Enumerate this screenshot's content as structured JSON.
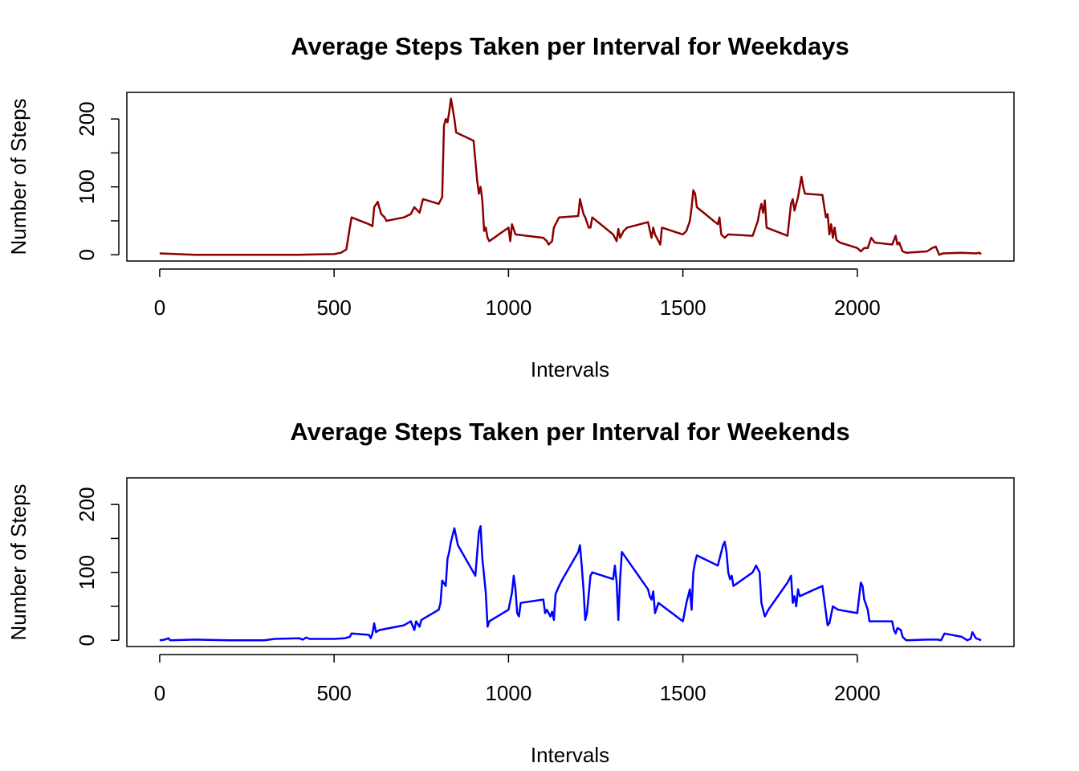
{
  "chart_data": [
    {
      "type": "line",
      "title": "Average Steps Taken per Interval for Weekdays",
      "xlabel": "Intervals",
      "ylabel": "Number of Steps",
      "xlim": [
        -94.2,
        2449.2
      ],
      "ylim": [
        -9.2,
        239.2
      ],
      "xticks": [
        0,
        500,
        1000,
        1500,
        2000
      ],
      "yticks": [
        0,
        100,
        200
      ],
      "yminor_ticks": [
        50,
        150
      ],
      "series": [
        {
          "name": "Weekdays",
          "color": "#8b0000",
          "x": [
            0,
            100,
            200,
            300,
            400,
            500,
            520,
            535,
            545,
            550,
            600,
            610,
            615,
            625,
            635,
            645,
            650,
            700,
            720,
            730,
            745,
            755,
            800,
            805,
            810,
            815,
            820,
            825,
            830,
            835,
            840,
            845,
            850,
            900,
            910,
            915,
            920,
            925,
            930,
            935,
            940,
            945,
            1000,
            1005,
            1010,
            1020,
            1100,
            1110,
            1115,
            1125,
            1130,
            1135,
            1145,
            1200,
            1205,
            1215,
            1220,
            1230,
            1235,
            1240,
            1300,
            1310,
            1315,
            1320,
            1330,
            1340,
            1400,
            1410,
            1415,
            1420,
            1435,
            1440,
            1500,
            1510,
            1520,
            1525,
            1530,
            1535,
            1540,
            1600,
            1605,
            1610,
            1620,
            1630,
            1700,
            1715,
            1720,
            1725,
            1730,
            1735,
            1740,
            1800,
            1810,
            1815,
            1820,
            1830,
            1840,
            1845,
            1850,
            1900,
            1910,
            1915,
            1920,
            1925,
            1930,
            1935,
            1940,
            1950,
            2000,
            2010,
            2020,
            2030,
            2040,
            2050,
            2100,
            2110,
            2115,
            2120,
            2130,
            2140,
            2200,
            2215,
            2225,
            2235,
            2245,
            2300,
            2340,
            2350,
            2355
          ],
          "values": [
            2,
            0,
            0,
            0,
            0,
            1,
            3,
            8,
            40,
            55,
            45,
            42,
            70,
            78,
            60,
            55,
            50,
            55,
            60,
            70,
            62,
            82,
            75,
            80,
            85,
            190,
            200,
            195,
            210,
            230,
            215,
            200,
            180,
            168,
            110,
            90,
            100,
            80,
            35,
            40,
            25,
            20,
            40,
            20,
            45,
            30,
            25,
            20,
            15,
            20,
            40,
            45,
            55,
            57,
            82,
            60,
            55,
            40,
            40,
            55,
            30,
            20,
            38,
            25,
            35,
            40,
            48,
            25,
            40,
            30,
            15,
            40,
            30,
            35,
            50,
            70,
            95,
            90,
            70,
            45,
            55,
            30,
            25,
            30,
            28,
            50,
            65,
            75,
            62,
            80,
            40,
            28,
            75,
            82,
            65,
            85,
            115,
            100,
            90,
            88,
            55,
            60,
            30,
            45,
            25,
            40,
            22,
            18,
            10,
            5,
            10,
            10,
            25,
            18,
            15,
            28,
            15,
            18,
            5,
            3,
            5,
            10,
            12,
            0,
            2,
            3,
            2,
            3,
            1
          ]
        }
      ]
    },
    {
      "type": "line",
      "title": "Average Steps Taken per Interval for Weekends",
      "xlabel": "Intervals",
      "ylabel": "Number of Steps",
      "xlim": [
        -94.2,
        2449.2
      ],
      "ylim": [
        -9.2,
        239.2
      ],
      "xticks": [
        0,
        500,
        1000,
        1500,
        2000
      ],
      "yticks": [
        0,
        100,
        200
      ],
      "yminor_ticks": [
        50,
        150
      ],
      "series": [
        {
          "name": "Weekends",
          "color": "#0000ff",
          "x": [
            0,
            15,
            25,
            30,
            100,
            200,
            300,
            330,
            400,
            410,
            420,
            430,
            500,
            530,
            545,
            550,
            600,
            605,
            610,
            615,
            620,
            630,
            700,
            720,
            730,
            735,
            745,
            750,
            800,
            805,
            810,
            820,
            825,
            830,
            835,
            845,
            855,
            905,
            915,
            920,
            925,
            930,
            935,
            940,
            945,
            1000,
            1010,
            1015,
            1020,
            1025,
            1030,
            1035,
            1100,
            1105,
            1110,
            1120,
            1125,
            1130,
            1135,
            1145,
            1155,
            1200,
            1205,
            1210,
            1215,
            1220,
            1225,
            1235,
            1240,
            1300,
            1305,
            1310,
            1315,
            1320,
            1325,
            1400,
            1405,
            1410,
            1415,
            1420,
            1430,
            1500,
            1510,
            1520,
            1525,
            1530,
            1535,
            1540,
            1600,
            1615,
            1620,
            1625,
            1630,
            1635,
            1640,
            1645,
            1700,
            1710,
            1720,
            1725,
            1730,
            1735,
            1745,
            1800,
            1810,
            1815,
            1820,
            1825,
            1830,
            1835,
            1900,
            1905,
            1915,
            1920,
            1930,
            1945,
            2000,
            2010,
            2015,
            2020,
            2030,
            2035,
            2050,
            2100,
            2105,
            2110,
            2115,
            2125,
            2130,
            2140,
            2200,
            2230,
            2240,
            2250,
            2300,
            2315,
            2325,
            2330,
            2340,
            2355
          ],
          "values": [
            0,
            1,
            3,
            0,
            1,
            0,
            0,
            2,
            3,
            1,
            4,
            2,
            2,
            3,
            5,
            10,
            8,
            3,
            10,
            25,
            12,
            15,
            22,
            28,
            15,
            28,
            20,
            30,
            45,
            55,
            88,
            80,
            120,
            130,
            145,
            165,
            140,
            95,
            160,
            168,
            120,
            95,
            70,
            20,
            28,
            45,
            70,
            95,
            75,
            40,
            35,
            55,
            60,
            40,
            45,
            35,
            42,
            30,
            68,
            80,
            90,
            130,
            140,
            110,
            75,
            30,
            40,
            95,
            100,
            90,
            110,
            85,
            30,
            90,
            130,
            75,
            65,
            60,
            72,
            40,
            55,
            28,
            55,
            75,
            45,
            100,
            115,
            125,
            110,
            140,
            145,
            130,
            100,
            90,
            95,
            80,
            100,
            110,
            100,
            55,
            45,
            35,
            45,
            85,
            95,
            55,
            65,
            50,
            75,
            65,
            80,
            60,
            22,
            25,
            50,
            45,
            40,
            85,
            80,
            60,
            45,
            28,
            28,
            28,
            15,
            10,
            18,
            15,
            5,
            0,
            1,
            1,
            0,
            10,
            5,
            0,
            2,
            12,
            3,
            0
          ]
        }
      ]
    }
  ]
}
